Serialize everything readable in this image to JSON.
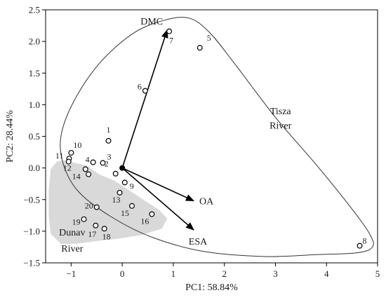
{
  "chart_data": {
    "type": "scatter",
    "title": "",
    "xlabel": "PC1: 58.84%",
    "ylabel": "PC2: 28.44%",
    "xlim": [
      -1.5,
      5
    ],
    "ylim": [
      -1.5,
      2.5
    ],
    "xticks": [
      -1,
      0,
      1,
      2,
      3,
      4,
      5
    ],
    "yticks": [
      -1.5,
      -1.0,
      -0.5,
      0.0,
      0.5,
      1.0,
      1.5,
      2.0,
      2.5
    ],
    "xtick_labels": [
      "−1",
      "0",
      "1",
      "2",
      "3",
      "4",
      "5"
    ],
    "ytick_labels": [
      "−1.5",
      "−1.0",
      "−0.5",
      "0.0",
      "0.5",
      "1.0",
      "1.5",
      "2.0",
      "2.5"
    ],
    "grid": false,
    "points": [
      {
        "label": "1",
        "x": -0.27,
        "y": 0.43
      },
      {
        "label": "2",
        "x": -0.13,
        "y": -0.09
      },
      {
        "label": "3",
        "x": -0.38,
        "y": 0.08
      },
      {
        "label": "4",
        "x": -0.57,
        "y": 0.09
      },
      {
        "label": "5",
        "x": 1.52,
        "y": 1.9
      },
      {
        "label": "6",
        "x": 0.45,
        "y": 1.22
      },
      {
        "label": "7",
        "x": 0.92,
        "y": 2.16
      },
      {
        "label": "8",
        "x": 4.65,
        "y": -1.23
      },
      {
        "label": "9",
        "x": 0.05,
        "y": -0.23
      },
      {
        "label": "10",
        "x": -1.0,
        "y": 0.24
      },
      {
        "label": "11",
        "x": -1.04,
        "y": 0.15
      },
      {
        "label": "12",
        "x": -1.05,
        "y": 0.1
      },
      {
        "label": "13",
        "x": -0.05,
        "y": -0.39
      },
      {
        "label": "14",
        "x": -0.72,
        "y": -0.02
      },
      {
        "label": "15",
        "x": 0.19,
        "y": -0.6
      },
      {
        "label": "16",
        "x": 0.58,
        "y": -0.73
      },
      {
        "label": "17",
        "x": -0.52,
        "y": -0.91
      },
      {
        "label": "18",
        "x": -0.35,
        "y": -0.96
      },
      {
        "label": "19",
        "x": -0.75,
        "y": -0.81
      },
      {
        "label": "20",
        "x": -0.5,
        "y": -0.62
      },
      {
        "label": "",
        "x": -0.66,
        "y": -0.1
      }
    ],
    "vectors": [
      {
        "name": "DMC",
        "x": 0.88,
        "y": 2.18
      },
      {
        "name": "OA",
        "x": 1.4,
        "y": -0.52
      },
      {
        "name": "ESA",
        "x": 1.4,
        "y": -0.98
      }
    ],
    "group_labels": {
      "tisza": [
        "Tisza",
        "River"
      ],
      "dunav": [
        "Dunav",
        "River"
      ]
    },
    "colors": {
      "dunav_fill": "#d9d9d9",
      "tisza_outline": "#333333",
      "axis": "#000000",
      "vector": "#000000",
      "point_fill": "#ffffff",
      "point_stroke": "#000000"
    }
  }
}
